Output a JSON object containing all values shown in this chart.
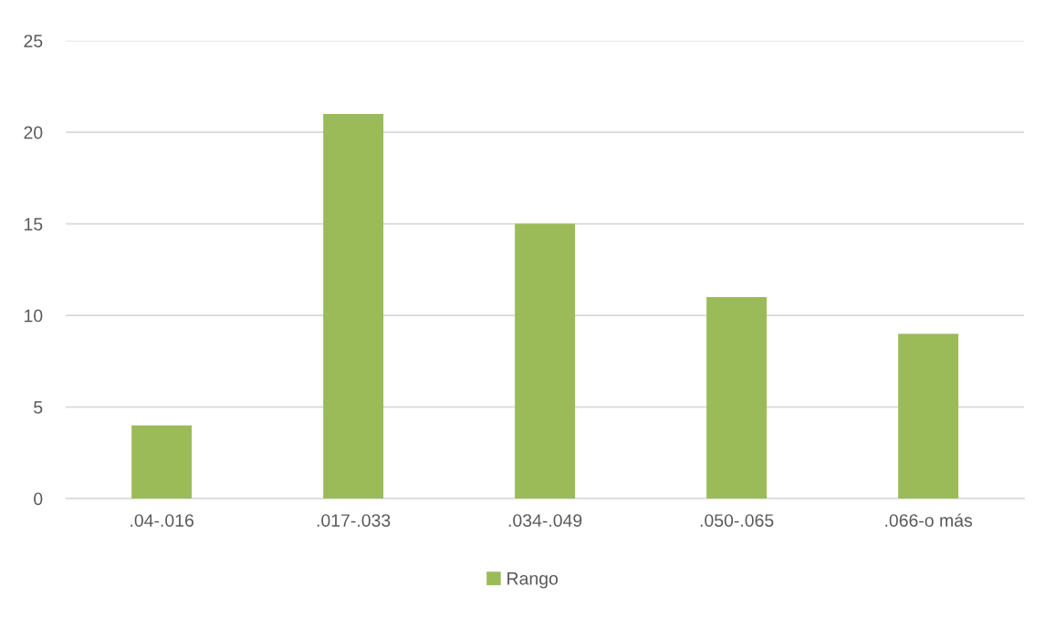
{
  "chart_data": {
    "type": "bar",
    "categories": [
      ".04-.016",
      ".017-.033",
      ".034-.049",
      ".050-.065",
      ".066-o más"
    ],
    "series": [
      {
        "name": "Rango",
        "color": "#9bbb59",
        "values": [
          4,
          21,
          15,
          11,
          9
        ]
      }
    ],
    "ylim": [
      0,
      25
    ],
    "yticks": [
      0,
      5,
      10,
      15,
      20,
      25
    ],
    "grid": "y",
    "legend": "bottom"
  }
}
